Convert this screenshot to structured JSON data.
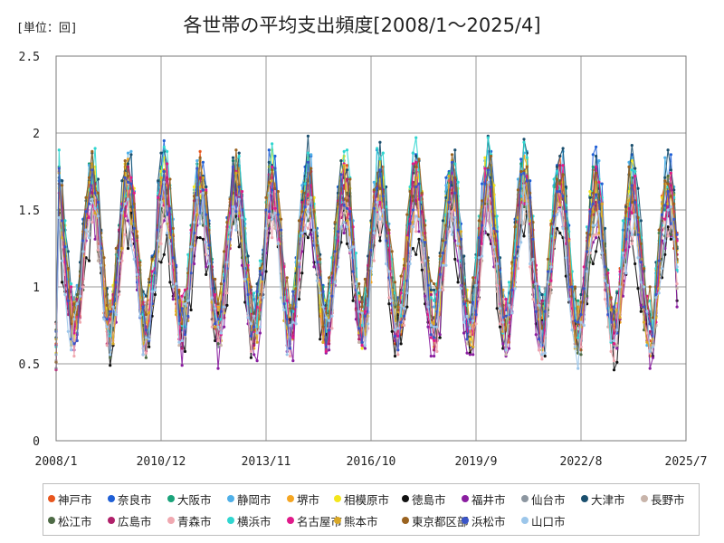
{
  "unit_label": "[単位：回]",
  "chart_data": {
    "type": "line",
    "title": "各世帯の平均支出頻度[2008/1～2025/4]",
    "ylim": [
      0,
      2.5
    ],
    "yticks": [
      0,
      0.5,
      1,
      1.5,
      2,
      2.5
    ],
    "ytick_labels": [
      "0",
      "0.5",
      "1",
      "1.5",
      "2",
      "2.5"
    ],
    "x_start": "2008/1",
    "x_end": "2025/7",
    "xticks": [
      "2008/1",
      "2010/12",
      "2013/11",
      "2016/10",
      "2019/9",
      "2022/8",
      "2025/7"
    ],
    "grid": true,
    "legend_position": "bottom",
    "peak_months": [
      1,
      12
    ],
    "series": [
      {
        "name": "神戸市",
        "color": "#e8561e",
        "base": 1.22,
        "amp": 0.48,
        "seed": 1
      },
      {
        "name": "奈良市",
        "color": "#1f5fd6",
        "base": 1.28,
        "amp": 0.52,
        "seed": 2
      },
      {
        "name": "大阪市",
        "color": "#1aa37a",
        "base": 1.24,
        "amp": 0.46,
        "seed": 3
      },
      {
        "name": "静岡市",
        "color": "#4fb0e8",
        "base": 1.27,
        "amp": 0.5,
        "seed": 4
      },
      {
        "name": "堺市",
        "color": "#f5a623",
        "base": 1.21,
        "amp": 0.47,
        "seed": 5
      },
      {
        "name": "相模原市",
        "color": "#f4e61c",
        "base": 1.25,
        "amp": 0.48,
        "seed": 6
      },
      {
        "name": "徳島市",
        "color": "#111111",
        "base": 1.02,
        "amp": 0.36,
        "seed": 7
      },
      {
        "name": "福井市",
        "color": "#8a1ea0",
        "base": 1.08,
        "amp": 0.44,
        "seed": 8
      },
      {
        "name": "仙台市",
        "color": "#8c96a0",
        "base": 1.2,
        "amp": 0.44,
        "seed": 9
      },
      {
        "name": "大津市",
        "color": "#1a4f6e",
        "base": 1.3,
        "amp": 0.5,
        "seed": 10
      },
      {
        "name": "長野市",
        "color": "#c8b4aa",
        "base": 1.14,
        "amp": 0.4,
        "seed": 11
      },
      {
        "name": "松江市",
        "color": "#4e6b46",
        "base": 1.15,
        "amp": 0.43,
        "seed": 12
      },
      {
        "name": "広島市",
        "color": "#b0206a",
        "base": 1.19,
        "amp": 0.46,
        "seed": 13
      },
      {
        "name": "青森市",
        "color": "#f0a8b0",
        "base": 1.1,
        "amp": 0.4,
        "seed": 14
      },
      {
        "name": "横浜市",
        "color": "#30d6d0",
        "base": 1.29,
        "amp": 0.5,
        "seed": 15
      },
      {
        "name": "名古屋市",
        "color": "#e01a8a",
        "base": 1.22,
        "amp": 0.46,
        "seed": 16
      },
      {
        "name": "熊本市",
        "color": "#d9a826",
        "base": 1.18,
        "amp": 0.45,
        "seed": 17
      },
      {
        "name": "東京都区部",
        "color": "#9a6320",
        "base": 1.3,
        "amp": 0.44,
        "seed": 18
      },
      {
        "name": "浜松市",
        "color": "#3a55c8",
        "base": 1.2,
        "amp": 0.46,
        "seed": 19
      },
      {
        "name": "山口市",
        "color": "#9cc6ea",
        "base": 1.09,
        "amp": 0.42,
        "seed": 20
      }
    ]
  }
}
